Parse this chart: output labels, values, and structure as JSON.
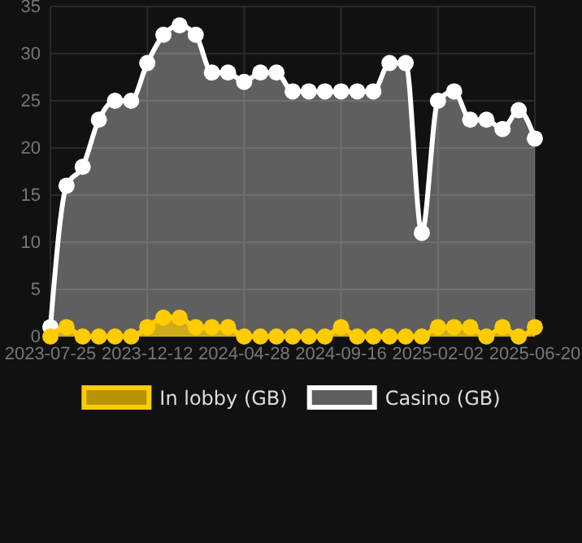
{
  "chart_data": {
    "type": "area",
    "categories": [
      "2023-07-25",
      null,
      null,
      null,
      null,
      null,
      "2023-12-12",
      null,
      null,
      null,
      null,
      null,
      "2024-04-28",
      null,
      null,
      null,
      null,
      null,
      "2024-09-16",
      null,
      null,
      null,
      null,
      null,
      "2025-02-02",
      null,
      null,
      null,
      null,
      null,
      "2025-06-20"
    ],
    "series": [
      {
        "name": "In lobby (GB)",
        "color": "#ffcc00",
        "values": [
          0,
          1,
          0,
          0,
          0,
          0,
          1,
          2,
          2,
          1,
          1,
          1,
          0,
          0,
          0,
          0,
          0,
          0,
          1,
          0,
          0,
          0,
          0,
          0,
          1,
          1,
          1,
          0,
          1,
          0,
          1
        ]
      },
      {
        "name": "Casino (GB)",
        "color": "#ffffff",
        "values": [
          1,
          16,
          18,
          23,
          25,
          25,
          29,
          32,
          33,
          32,
          28,
          28,
          27,
          28,
          28,
          26,
          26,
          26,
          26,
          26,
          26,
          29,
          29,
          11,
          25,
          26,
          23,
          23,
          22,
          24,
          21
        ]
      }
    ],
    "ylim": [
      0,
      35
    ],
    "yticks": [
      0,
      5,
      10,
      15,
      20,
      25,
      30,
      35
    ],
    "grid": true,
    "legend": "bottom",
    "marker": "circle"
  }
}
